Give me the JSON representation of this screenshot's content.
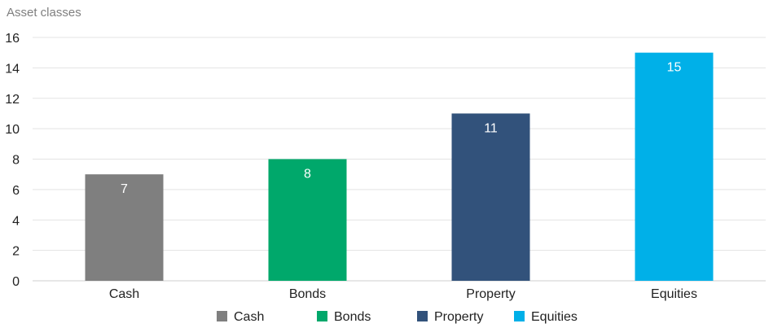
{
  "chart_data": {
    "type": "bar",
    "title": "Asset classes",
    "xlabel": "",
    "ylabel": "",
    "categories": [
      "Cash",
      "Bonds",
      "Property",
      "Equities"
    ],
    "values": [
      7,
      8,
      11,
      15
    ],
    "colors": [
      "#7f7f7f",
      "#00a86b",
      "#32527b",
      "#00b0e8"
    ],
    "ylim": [
      0,
      16
    ],
    "yticks": [
      0,
      2,
      4,
      6,
      8,
      10,
      12,
      14,
      16
    ],
    "grid": true,
    "legend_placement": "bottom",
    "data_labels": true
  }
}
